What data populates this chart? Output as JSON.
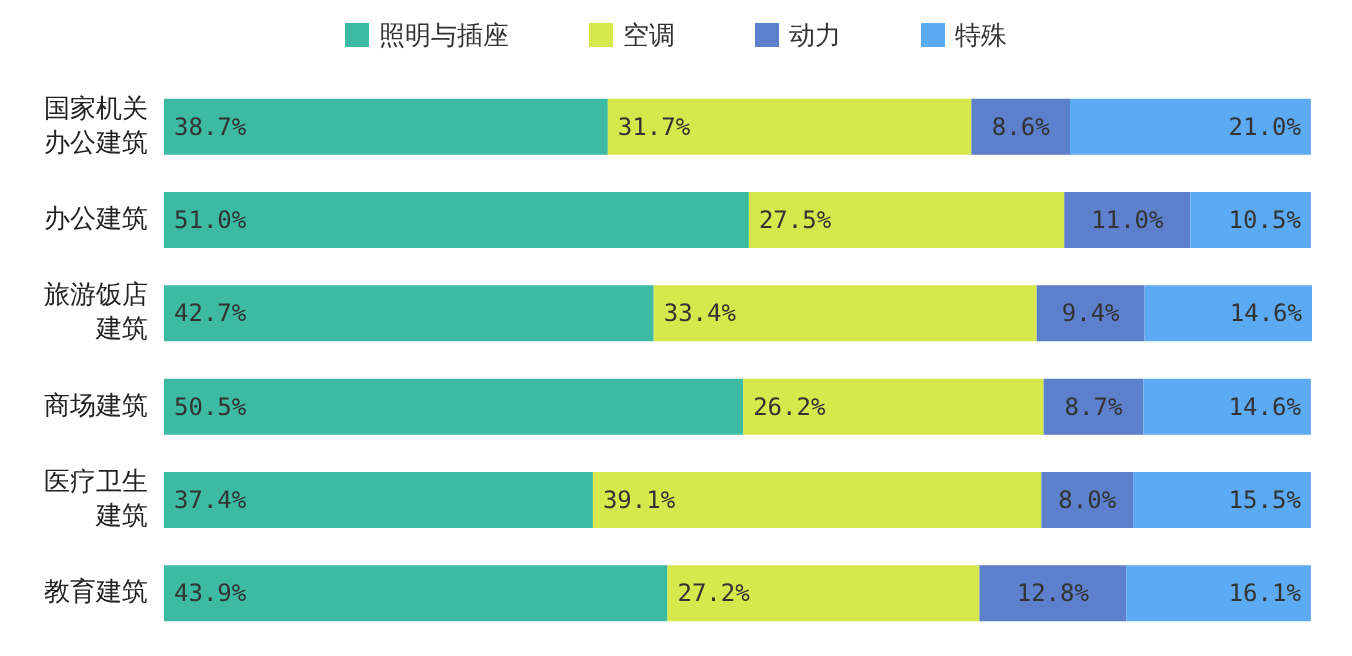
{
  "chart_data": {
    "type": "bar",
    "orientation": "horizontal",
    "stacked": true,
    "legend": "top",
    "categories": [
      "国家机关办公建筑",
      "办公建筑",
      "旅游饭店建筑",
      "商场建筑",
      "医疗卫生建筑",
      "教育建筑"
    ],
    "series": [
      {
        "name": "照明与插座",
        "color": "#3dbaa2",
        "values": [
          38.7,
          51.0,
          42.7,
          50.5,
          37.4,
          43.9
        ],
        "value_labels": [
          "38.7%",
          "51.0%",
          "42.7%",
          "50.5%",
          "37.4%",
          "43.9%"
        ]
      },
      {
        "name": "空调",
        "color": "#d5e84c",
        "values": [
          31.7,
          27.5,
          33.4,
          26.2,
          39.1,
          27.2
        ],
        "value_labels": [
          "31.7%",
          "27.5%",
          "33.4%",
          "26.2%",
          "39.1%",
          "27.2%"
        ]
      },
      {
        "name": "动力",
        "color": "#5c80cc",
        "values": [
          8.6,
          11.0,
          9.4,
          8.7,
          8.0,
          12.8
        ],
        "value_labels": [
          "8.6%",
          "11.0%",
          "9.4%",
          "8.7%",
          "8.0%",
          "12.8%"
        ]
      },
      {
        "name": "特殊",
        "color": "#5caaf2",
        "values": [
          21.0,
          10.5,
          14.6,
          14.6,
          15.5,
          16.1
        ],
        "value_labels": [
          "21.0%",
          "10.5%",
          "14.6%",
          "14.6%",
          "15.5%",
          "16.1%"
        ]
      }
    ]
  }
}
